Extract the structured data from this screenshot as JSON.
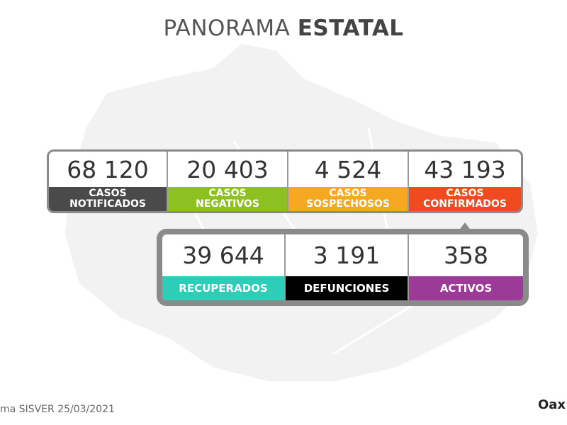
{
  "header": {
    "title_light": "PANORAMA",
    "title_bold": "ESTATAL"
  },
  "top_row": [
    {
      "value": "68 120",
      "label": [
        "CASOS",
        "NOTIFICADOS"
      ]
    },
    {
      "value": "20 403",
      "label": [
        "CASOS",
        "NEGATIVOS"
      ]
    },
    {
      "value": "4 524",
      "label": [
        "CASOS",
        "SOSPECHOSOS"
      ]
    },
    {
      "value": "43 193",
      "label": [
        "CASOS",
        "CONFIRMADOS"
      ]
    }
  ],
  "bottom_row": [
    {
      "value": "39 644",
      "label": [
        "RECUPERADOS"
      ]
    },
    {
      "value": "3 191",
      "label": [
        "DEFUNCIONES"
      ]
    },
    {
      "value": "358",
      "label": [
        "ACTIVOS"
      ]
    }
  ],
  "footer": {
    "source": "ma SISVER",
    "date": "25/03/2021",
    "logo": "Oax"
  }
}
